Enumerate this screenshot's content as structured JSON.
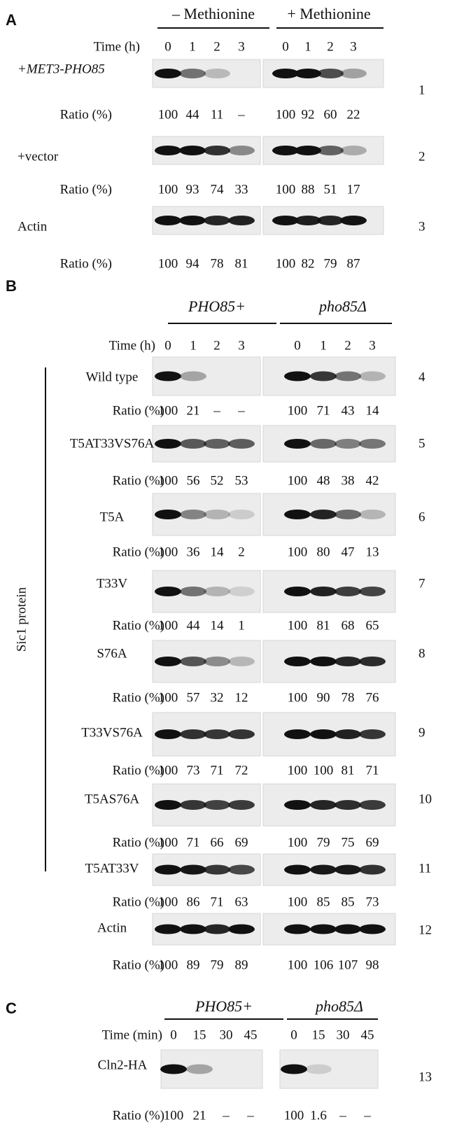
{
  "side_label": "Sic1 protein",
  "panels": [
    {
      "letter": "A",
      "groups": [
        "– Methionine",
        "+ Methionine"
      ],
      "time_label": "Time (h)",
      "times": [
        "0",
        "1",
        "2",
        "3",
        "0",
        "1",
        "2",
        "3"
      ],
      "rows": [
        {
          "label": "+MET3-PHO85",
          "lane": "1",
          "ratio_label": "Ratio (%)",
          "ratios": [
            "100",
            "44",
            "11",
            "–",
            "100",
            "92",
            "60",
            "22"
          ]
        },
        {
          "label": "+vector",
          "lane": "2",
          "ratio_label": "Ratio (%)",
          "ratios": [
            "100",
            "93",
            "74",
            "33",
            "100",
            "88",
            "51",
            "17"
          ]
        },
        {
          "label": "Actin",
          "lane": "3",
          "ratio_label": "Ratio (%)",
          "ratios": [
            "100",
            "94",
            "78",
            "81",
            "100",
            "82",
            "79",
            "87"
          ]
        }
      ]
    },
    {
      "letter": "B",
      "groups": [
        "PHO85+",
        "pho85Δ"
      ],
      "time_label": "Time (h)",
      "times": [
        "0",
        "1",
        "2",
        "3",
        "0",
        "1",
        "2",
        "3"
      ],
      "rows": [
        {
          "label": "Wild type",
          "lane": "4",
          "ratio_label": "Ratio (%)",
          "ratios": [
            "100",
            "21",
            "–",
            "–",
            "100",
            "71",
            "43",
            "14"
          ]
        },
        {
          "label": "T5AT33VS76A",
          "lane": "5",
          "ratio_label": "Ratio (%)",
          "ratios": [
            "100",
            "56",
            "52",
            "53",
            "100",
            "48",
            "38",
            "42"
          ]
        },
        {
          "label": "T5A",
          "lane": "6",
          "ratio_label": "Ratio (%)",
          "ratios": [
            "100",
            "36",
            "14",
            "2",
            "100",
            "80",
            "47",
            "13"
          ]
        },
        {
          "label": "T33V",
          "lane": "7",
          "ratio_label": "Ratio (%)",
          "ratios": [
            "100",
            "44",
            "14",
            "1",
            "100",
            "81",
            "68",
            "65"
          ]
        },
        {
          "label": "S76A",
          "lane": "8",
          "ratio_label": "Ratio (%)",
          "ratios": [
            "100",
            "57",
            "32",
            "12",
            "100",
            "90",
            "78",
            "76"
          ]
        },
        {
          "label": "T33VS76A",
          "lane": "9",
          "ratio_label": "Ratio (%)",
          "ratios": [
            "100",
            "73",
            "71",
            "72",
            "100",
            "100",
            "81",
            "71"
          ]
        },
        {
          "label": "T5AS76A",
          "lane": "10",
          "ratio_label": "Ratio (%)",
          "ratios": [
            "100",
            "71",
            "66",
            "69",
            "100",
            "79",
            "75",
            "69"
          ]
        },
        {
          "label": "T5AT33V",
          "lane": "11",
          "ratio_label": "Ratio (%)",
          "ratios": [
            "100",
            "86",
            "71",
            "63",
            "100",
            "85",
            "85",
            "73"
          ]
        },
        {
          "label": "Actin",
          "lane": "12",
          "ratio_label": "Ratio (%)",
          "ratios": [
            "100",
            "89",
            "79",
            "89",
            "100",
            "106",
            "107",
            "98"
          ]
        }
      ]
    },
    {
      "letter": "C",
      "groups": [
        "PHO85+",
        "pho85Δ"
      ],
      "time_label": "Time (min)",
      "times": [
        "0",
        "15",
        "30",
        "45",
        "0",
        "15",
        "30",
        "45"
      ],
      "rows": [
        {
          "label": "Cln2-HA",
          "lane": "13",
          "ratio_label": "Ratio (%)",
          "ratios": [
            "100",
            "21",
            "–",
            "–",
            "100",
            "1.6",
            "–",
            "–"
          ]
        }
      ]
    }
  ]
}
